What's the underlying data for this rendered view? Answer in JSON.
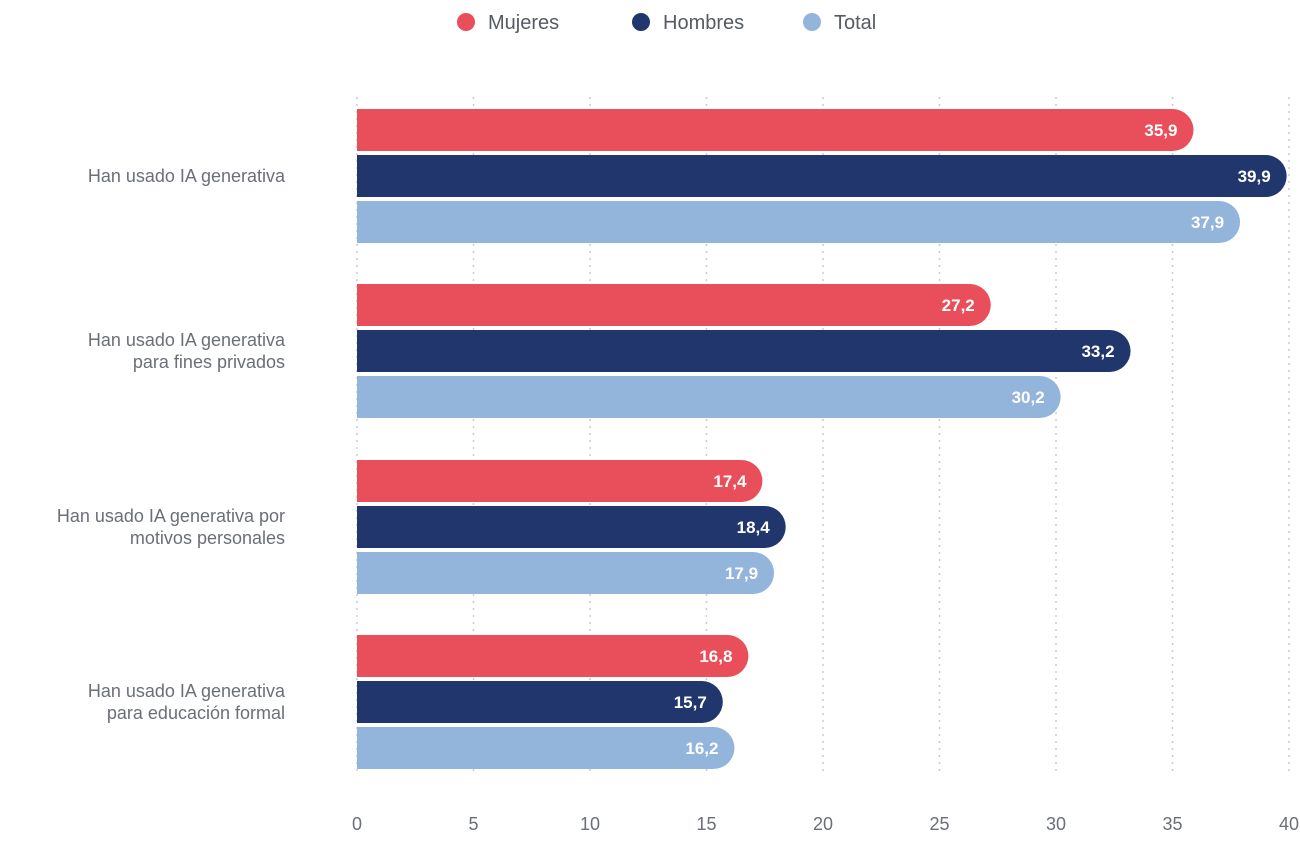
{
  "chart_data": {
    "type": "bar",
    "orientation": "horizontal",
    "categories": [
      [
        "Han usado IA generativa"
      ],
      [
        "Han usado IA generativa",
        "para fines privados"
      ],
      [
        "Han usado IA generativa por",
        "motivos personales"
      ],
      [
        "Han usado IA generativa",
        "para educación formal"
      ]
    ],
    "series": [
      {
        "name": "Mujeres",
        "color": "#e84f5a",
        "values": [
          35.9,
          27.2,
          17.4,
          16.8
        ],
        "labels": [
          "35,9",
          "27,2",
          "17,4",
          "16,8"
        ]
      },
      {
        "name": "Hombres",
        "color": "#20366c",
        "values": [
          39.9,
          33.2,
          18.4,
          15.7
        ],
        "labels": [
          "39,9",
          "33,2",
          "18,4",
          "15,7"
        ]
      },
      {
        "name": "Total",
        "color": "#93b5dc",
        "values": [
          37.9,
          30.2,
          17.9,
          16.2
        ],
        "labels": [
          "37,9",
          "30,2",
          "17,9",
          "16,2"
        ]
      }
    ],
    "xlim": [
      0,
      40
    ],
    "xticks": [
      0,
      5,
      10,
      15,
      20,
      25,
      30,
      35,
      40
    ],
    "xtick_labels": [
      "0",
      "5",
      "10",
      "15",
      "20",
      "25",
      "30",
      "35",
      "40"
    ],
    "grid": "vertical dotted",
    "legend_position": "top-center",
    "title": "",
    "xlabel": "",
    "ylabel": ""
  }
}
